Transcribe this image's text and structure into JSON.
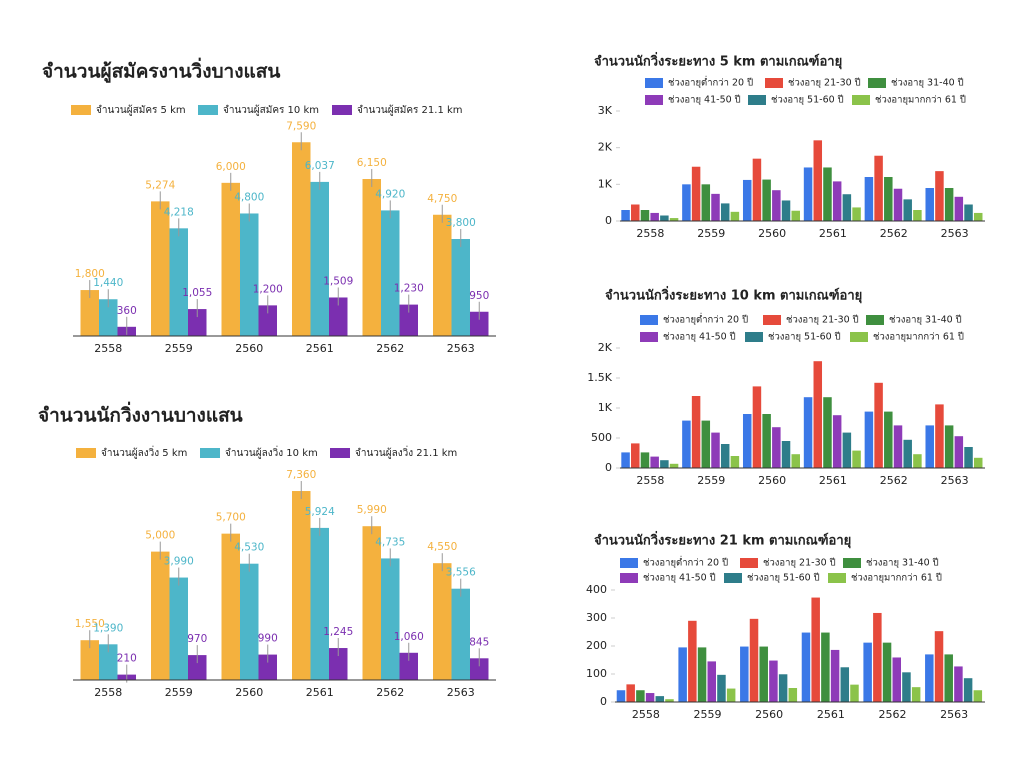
{
  "chart_data": [
    {
      "type": "bar",
      "title": "จำนวนผู้สมัครงานวิ่งบางแสน",
      "categories": [
        "2558",
        "2559",
        "2560",
        "2561",
        "2562",
        "2563"
      ],
      "ylim": [
        0,
        7600
      ],
      "series": [
        {
          "name": "จำนวนผู้สมัคร 5 km",
          "color": "#f4b13e",
          "values": [
            1800,
            5274,
            6000,
            7590,
            6150,
            4750
          ],
          "value_labels": [
            "1,800",
            "5,274",
            "6,000",
            "7,590",
            "6,150",
            "4,750"
          ]
        },
        {
          "name": "จำนวนผู้สมัคร 10 km",
          "color": "#4db6c9",
          "values": [
            1440,
            4218,
            4800,
            6037,
            4920,
            3800
          ],
          "value_labels": [
            "1,440",
            "4,218",
            "4,800",
            "6,037",
            "4,920",
            "3,800"
          ]
        },
        {
          "name": "จำนวนผู้สมัคร 21.1 km",
          "color": "#7b2fb0",
          "values": [
            360,
            1055,
            1200,
            1509,
            1230,
            950
          ],
          "value_labels": [
            "360",
            "1,055",
            "1,200",
            "1,509",
            "1,230",
            "950"
          ]
        }
      ]
    },
    {
      "type": "bar",
      "title": "จำนวนนักวิ่งงานบางแสน",
      "categories": [
        "2558",
        "2559",
        "2560",
        "2561",
        "2562",
        "2563"
      ],
      "ylim": [
        0,
        7400
      ],
      "series": [
        {
          "name": "จำนวนผู้ลงวิ่ง 5 km",
          "color": "#f4b13e",
          "values": [
            1550,
            5000,
            5700,
            7360,
            5990,
            4550
          ],
          "value_labels": [
            "1,550",
            "5,000",
            "5,700",
            "7,360",
            "5,990",
            "4,550"
          ]
        },
        {
          "name": "จำนวนผู้ลงวิ่ง 10 km",
          "color": "#4db6c9",
          "values": [
            1390,
            3990,
            4530,
            5924,
            4735,
            3556
          ],
          "value_labels": [
            "1,390",
            "3,990",
            "4,530",
            "5,924",
            "4,735",
            "3,556"
          ]
        },
        {
          "name": "จำนวนผู้ลงวิ่ง 21.1 km",
          "color": "#7b2fb0",
          "values": [
            210,
            970,
            990,
            1245,
            1060,
            845
          ],
          "value_labels": [
            "210",
            "970",
            "990",
            "1,245",
            "1,060",
            "845"
          ]
        }
      ]
    },
    {
      "type": "bar",
      "title": "จำนวนนักวิ่งระยะทาง 5 km ตามเกณฑ์อายุ",
      "categories": [
        "2558",
        "2559",
        "2560",
        "2561",
        "2562",
        "2563"
      ],
      "ylim": [
        0,
        3000
      ],
      "yticks": [
        0,
        {
          "value": 1000,
          "label": "1K"
        },
        {
          "value": 2000,
          "label": "2K"
        },
        {
          "value": 3000,
          "label": "3K"
        }
      ],
      "series": [
        {
          "name": "ช่วงอายุต่ำกว่า 20 ปี",
          "color": "#3b78e7",
          "values": [
            300,
            1000,
            1120,
            1460,
            1200,
            900
          ]
        },
        {
          "name": "ช่วงอายุ 21-30 ปี",
          "color": "#e64a3b",
          "values": [
            450,
            1480,
            1700,
            2200,
            1780,
            1360
          ]
        },
        {
          "name": "ช่วงอายุ 31-40 ปี",
          "color": "#3f8f3f",
          "values": [
            300,
            1000,
            1130,
            1460,
            1200,
            900
          ]
        },
        {
          "name": "ช่วงอายุ 41-50 ปี",
          "color": "#8e3bb8",
          "values": [
            220,
            740,
            840,
            1080,
            880,
            660
          ]
        },
        {
          "name": "ช่วงอายุ 51-60 ปี",
          "color": "#2e7d8a",
          "values": [
            150,
            480,
            560,
            730,
            590,
            450
          ]
        },
        {
          "name": "ช่วงอายุมากกว่า 61 ปี",
          "color": "#8bc34a",
          "values": [
            80,
            250,
            280,
            370,
            300,
            220
          ]
        }
      ]
    },
    {
      "type": "bar",
      "title": "จำนวนนักวิ่งระยะทาง 10 km ตามเกณฑ์อายุ",
      "categories": [
        "2558",
        "2559",
        "2560",
        "2561",
        "2562",
        "2563"
      ],
      "ylim": [
        0,
        2000
      ],
      "yticks": [
        0,
        500,
        {
          "value": 1000,
          "label": "1K"
        },
        {
          "value": 1500,
          "label": "1.5K"
        },
        {
          "value": 2000,
          "label": "2K"
        }
      ],
      "series": [
        {
          "name": "ช่วงอายุต่ำกว่า 20 ปี",
          "color": "#3b78e7",
          "values": [
            260,
            790,
            900,
            1180,
            940,
            710
          ]
        },
        {
          "name": "ช่วงอายุ 21-30 ปี",
          "color": "#e64a3b",
          "values": [
            410,
            1200,
            1360,
            1780,
            1420,
            1060
          ]
        },
        {
          "name": "ช่วงอายุ 31-40 ปี",
          "color": "#3f8f3f",
          "values": [
            260,
            790,
            900,
            1180,
            940,
            710
          ]
        },
        {
          "name": "ช่วงอายุ 41-50 ปี",
          "color": "#8e3bb8",
          "values": [
            190,
            590,
            680,
            880,
            710,
            530
          ]
        },
        {
          "name": "ช่วงอายุ 51-60 ปี",
          "color": "#2e7d8a",
          "values": [
            130,
            400,
            450,
            590,
            470,
            350
          ]
        },
        {
          "name": "ช่วงอายุมากกว่า 61 ปี",
          "color": "#8bc34a",
          "values": [
            70,
            200,
            230,
            290,
            230,
            170
          ]
        }
      ]
    },
    {
      "type": "bar",
      "title": "จำนวนนักวิ่งระยะทาง 21 km ตามเกณฑ์อายุ",
      "categories": [
        "2558",
        "2559",
        "2560",
        "2561",
        "2562",
        "2563"
      ],
      "ylim": [
        0,
        400
      ],
      "yticks": [
        0,
        100,
        200,
        300,
        400
      ],
      "series": [
        {
          "name": "ช่วงอายุต่ำกว่า 20 ปี",
          "color": "#3b78e7",
          "values": [
            42,
            195,
            198,
            248,
            212,
            170
          ]
        },
        {
          "name": "ช่วงอายุ 21-30 ปี",
          "color": "#e64a3b",
          "values": [
            63,
            290,
            297,
            373,
            318,
            253
          ]
        },
        {
          "name": "ช่วงอายุ 31-40 ปี",
          "color": "#3f8f3f",
          "values": [
            42,
            195,
            198,
            248,
            212,
            170
          ]
        },
        {
          "name": "ช่วงอายุ 41-50 ปี",
          "color": "#8e3bb8",
          "values": [
            32,
            145,
            148,
            186,
            159,
            127
          ]
        },
        {
          "name": "ช่วงอายุ 51-60 ปี",
          "color": "#2e7d8a",
          "values": [
            21,
            97,
            99,
            124,
            106,
            85
          ]
        },
        {
          "name": "ช่วงอายุมากกว่า 61 ปี",
          "color": "#8bc34a",
          "values": [
            10,
            48,
            50,
            62,
            53,
            42
          ]
        }
      ]
    }
  ]
}
